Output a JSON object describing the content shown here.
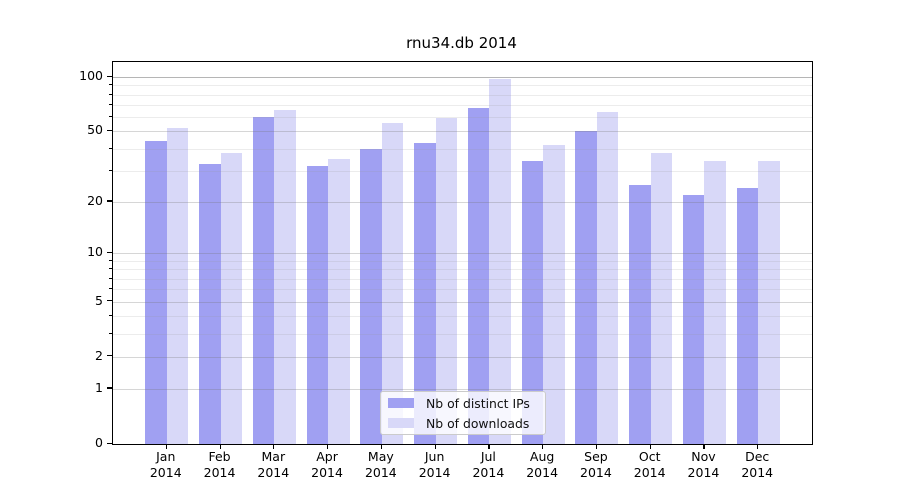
{
  "chart_data": {
    "type": "bar",
    "title": "rnu34.db 2014",
    "categories": [
      "Jan",
      "Feb",
      "Mar",
      "Apr",
      "May",
      "Jun",
      "Jul",
      "Aug",
      "Sep",
      "Oct",
      "Nov",
      "Dec"
    ],
    "x_year_label": "2014",
    "series": [
      {
        "name": "Nb of distinct IPs",
        "color": "#a0a0f2",
        "values": [
          44,
          33,
          60,
          32,
          40,
          43,
          67,
          34,
          50,
          25,
          22,
          24
        ]
      },
      {
        "name": "Nb of downloads",
        "color": "#d8d8f8",
        "values": [
          52,
          38,
          66,
          35,
          56,
          59,
          97,
          42,
          64,
          38,
          34,
          34
        ]
      }
    ],
    "y_axis": {
      "scale": "log10(value+1)",
      "ticks": [
        100,
        50,
        20,
        10,
        5,
        2,
        1,
        0
      ],
      "minor_gridlines": [
        3,
        4,
        6,
        7,
        8,
        9,
        30,
        40,
        60,
        70,
        80,
        90
      ],
      "ylim": [
        0,
        120
      ]
    },
    "grid": true,
    "legend_position": "lower-center-inside",
    "colors": {
      "background": "#ffffff",
      "axis": "#000000"
    }
  }
}
